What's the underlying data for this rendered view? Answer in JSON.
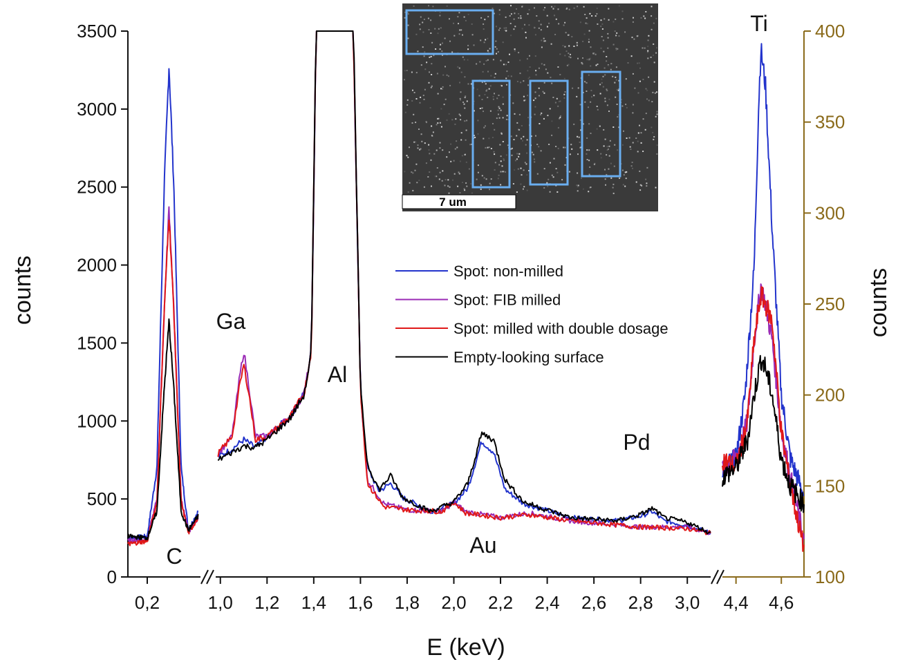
{
  "chart_data": {
    "type": "line",
    "xlabel": "E (keV)",
    "ylabel_left": "counts",
    "ylabel_right": "counts",
    "right_axis_color": "#8a6a1a",
    "ylim_left": [
      0,
      3500
    ],
    "ylim_right": [
      100,
      400
    ],
    "yticks_left": [
      "0",
      "500",
      "1000",
      "1500",
      "2000",
      "2500",
      "3000",
      "3500"
    ],
    "yticks_right": [
      "100",
      "150",
      "200",
      "250",
      "300",
      "350",
      "400"
    ],
    "x_segments": [
      {
        "name": "C region",
        "xlim": [
          0.12,
          0.42
        ],
        "xticks": [
          {
            "v": 0.2,
            "label": "0,2"
          }
        ]
      },
      {
        "name": "middle region",
        "xlim": [
          0.98,
          3.1
        ],
        "xticks": [
          {
            "v": 1.0,
            "label": "1,0"
          },
          {
            "v": 1.2,
            "label": "1,2"
          },
          {
            "v": 1.4,
            "label": "1,4"
          },
          {
            "v": 1.6,
            "label": "1,6"
          },
          {
            "v": 1.8,
            "label": "1,8"
          },
          {
            "v": 2.0,
            "label": "2,0"
          },
          {
            "v": 2.2,
            "label": "2,2"
          },
          {
            "v": 2.4,
            "label": "2,4"
          },
          {
            "v": 2.6,
            "label": "2,6"
          },
          {
            "v": 2.8,
            "label": "2,8"
          },
          {
            "v": 3.0,
            "label": "3,0"
          }
        ]
      },
      {
        "name": "Ti region",
        "xlim": [
          4.34,
          4.7
        ],
        "xticks": [
          {
            "v": 4.4,
            "label": "4,4"
          },
          {
            "v": 4.6,
            "label": "4,6"
          }
        ],
        "uses_right_axis": true
      }
    ],
    "grid": false,
    "legend_position": "center-right",
    "element_labels": [
      "C",
      "Ga",
      "Al",
      "Au",
      "Pd",
      "Ti"
    ],
    "inset": {
      "type": "sem-image",
      "scale_bar": "7 um",
      "roi_box_color": "#6aaef0"
    },
    "series": [
      {
        "name": "Spot: non-milled",
        "color": "#2233cc",
        "peaks_C": [
          [
            0.12,
            250
          ],
          [
            0.2,
            260
          ],
          [
            0.24,
            700
          ],
          [
            0.27,
            2500
          ],
          [
            0.29,
            3280
          ],
          [
            0.31,
            2500
          ],
          [
            0.34,
            700
          ],
          [
            0.37,
            300
          ],
          [
            0.41,
            420
          ]
        ],
        "peaks_mid": [
          [
            0.99,
            770
          ],
          [
            1.05,
            820
          ],
          [
            1.1,
            880
          ],
          [
            1.15,
            830
          ],
          [
            1.2,
            900
          ],
          [
            1.3,
            1030
          ],
          [
            1.36,
            1180
          ],
          [
            1.39,
            1450
          ],
          [
            1.41,
            3500
          ],
          [
            1.57,
            3500
          ],
          [
            1.6,
            1200
          ],
          [
            1.63,
            700
          ],
          [
            1.68,
            550
          ],
          [
            1.73,
            600
          ],
          [
            1.78,
            510
          ],
          [
            1.9,
            420
          ],
          [
            2.0,
            470
          ],
          [
            2.06,
            570
          ],
          [
            2.12,
            870
          ],
          [
            2.17,
            800
          ],
          [
            2.22,
            560
          ],
          [
            2.3,
            470
          ],
          [
            2.5,
            380
          ],
          [
            2.7,
            360
          ],
          [
            2.8,
            390
          ],
          [
            2.85,
            420
          ],
          [
            2.9,
            360
          ],
          [
            3.0,
            330
          ],
          [
            3.1,
            280
          ]
        ],
        "peaks_Ti": [
          [
            4.34,
            160
          ],
          [
            4.4,
            165
          ],
          [
            4.44,
            200
          ],
          [
            4.48,
            270
          ],
          [
            4.5,
            360
          ],
          [
            4.51,
            390
          ],
          [
            4.53,
            370
          ],
          [
            4.56,
            290
          ],
          [
            4.6,
            200
          ],
          [
            4.64,
            165
          ],
          [
            4.7,
            145
          ]
        ]
      },
      {
        "name": "Spot: FIB milled",
        "color": "#9a2ab5",
        "peaks_C": [
          [
            0.12,
            230
          ],
          [
            0.2,
            240
          ],
          [
            0.24,
            500
          ],
          [
            0.27,
            1700
          ],
          [
            0.29,
            2370
          ],
          [
            0.31,
            1700
          ],
          [
            0.34,
            500
          ],
          [
            0.37,
            290
          ],
          [
            0.41,
            380
          ]
        ],
        "peaks_mid": [
          [
            0.99,
            790
          ],
          [
            1.05,
            900
          ],
          [
            1.08,
            1250
          ],
          [
            1.1,
            1450
          ],
          [
            1.12,
            1250
          ],
          [
            1.15,
            900
          ],
          [
            1.2,
            900
          ],
          [
            1.3,
            1030
          ],
          [
            1.36,
            1180
          ],
          [
            1.39,
            1450
          ],
          [
            1.41,
            3500
          ],
          [
            1.57,
            3500
          ],
          [
            1.6,
            1200
          ],
          [
            1.63,
            620
          ],
          [
            1.7,
            470
          ],
          [
            1.8,
            430
          ],
          [
            1.95,
            420
          ],
          [
            2.0,
            480
          ],
          [
            2.05,
            420
          ],
          [
            2.2,
            380
          ],
          [
            2.32,
            410
          ],
          [
            2.5,
            360
          ],
          [
            2.8,
            320
          ],
          [
            3.0,
            320
          ],
          [
            3.1,
            280
          ]
        ],
        "peaks_Ti": [
          [
            4.34,
            160
          ],
          [
            4.4,
            165
          ],
          [
            4.45,
            185
          ],
          [
            4.48,
            230
          ],
          [
            4.51,
            260
          ],
          [
            4.53,
            250
          ],
          [
            4.56,
            230
          ],
          [
            4.6,
            180
          ],
          [
            4.64,
            155
          ],
          [
            4.7,
            120
          ]
        ]
      },
      {
        "name": "Spot: milled with double dosage",
        "color": "#e01818",
        "peaks_C": [
          [
            0.12,
            210
          ],
          [
            0.2,
            230
          ],
          [
            0.24,
            480
          ],
          [
            0.27,
            1700
          ],
          [
            0.29,
            2320
          ],
          [
            0.31,
            1700
          ],
          [
            0.34,
            480
          ],
          [
            0.37,
            280
          ],
          [
            0.41,
            380
          ]
        ],
        "peaks_mid": [
          [
            0.99,
            790
          ],
          [
            1.05,
            900
          ],
          [
            1.08,
            1200
          ],
          [
            1.1,
            1360
          ],
          [
            1.12,
            1200
          ],
          [
            1.15,
            880
          ],
          [
            1.2,
            900
          ],
          [
            1.3,
            1030
          ],
          [
            1.36,
            1180
          ],
          [
            1.39,
            1450
          ],
          [
            1.41,
            3500
          ],
          [
            1.57,
            3500
          ],
          [
            1.6,
            1200
          ],
          [
            1.63,
            600
          ],
          [
            1.7,
            450
          ],
          [
            1.8,
            430
          ],
          [
            1.95,
            420
          ],
          [
            2.0,
            480
          ],
          [
            2.05,
            410
          ],
          [
            2.2,
            380
          ],
          [
            2.32,
            400
          ],
          [
            2.5,
            360
          ],
          [
            2.8,
            320
          ],
          [
            3.0,
            310
          ],
          [
            3.1,
            280
          ]
        ],
        "peaks_Ti": [
          [
            4.34,
            165
          ],
          [
            4.4,
            160
          ],
          [
            4.45,
            185
          ],
          [
            4.48,
            230
          ],
          [
            4.51,
            255
          ],
          [
            4.53,
            250
          ],
          [
            4.56,
            240
          ],
          [
            4.6,
            180
          ],
          [
            4.64,
            150
          ],
          [
            4.7,
            115
          ]
        ]
      },
      {
        "name": "Empty-looking surface",
        "color": "#000000",
        "peaks_C": [
          [
            0.12,
            260
          ],
          [
            0.2,
            250
          ],
          [
            0.24,
            420
          ],
          [
            0.27,
            1200
          ],
          [
            0.29,
            1640
          ],
          [
            0.31,
            1200
          ],
          [
            0.34,
            420
          ],
          [
            0.37,
            300
          ],
          [
            0.41,
            390
          ]
        ],
        "peaks_mid": [
          [
            0.99,
            750
          ],
          [
            1.05,
            800
          ],
          [
            1.1,
            840
          ],
          [
            1.15,
            830
          ],
          [
            1.2,
            880
          ],
          [
            1.3,
            1020
          ],
          [
            1.36,
            1170
          ],
          [
            1.39,
            1450
          ],
          [
            1.41,
            3500
          ],
          [
            1.57,
            3500
          ],
          [
            1.6,
            1200
          ],
          [
            1.63,
            720
          ],
          [
            1.68,
            560
          ],
          [
            1.73,
            650
          ],
          [
            1.78,
            510
          ],
          [
            1.9,
            420
          ],
          [
            2.0,
            480
          ],
          [
            2.06,
            600
          ],
          [
            2.12,
            920
          ],
          [
            2.17,
            880
          ],
          [
            2.22,
            620
          ],
          [
            2.3,
            480
          ],
          [
            2.5,
            380
          ],
          [
            2.7,
            360
          ],
          [
            2.8,
            400
          ],
          [
            2.85,
            440
          ],
          [
            2.9,
            380
          ],
          [
            3.0,
            350
          ],
          [
            3.1,
            280
          ]
        ],
        "peaks_Ti": [
          [
            4.34,
            155
          ],
          [
            4.4,
            160
          ],
          [
            4.45,
            175
          ],
          [
            4.48,
            200
          ],
          [
            4.51,
            220
          ],
          [
            4.53,
            215
          ],
          [
            4.56,
            200
          ],
          [
            4.6,
            165
          ],
          [
            4.64,
            150
          ],
          [
            4.7,
            140
          ]
        ]
      }
    ]
  }
}
